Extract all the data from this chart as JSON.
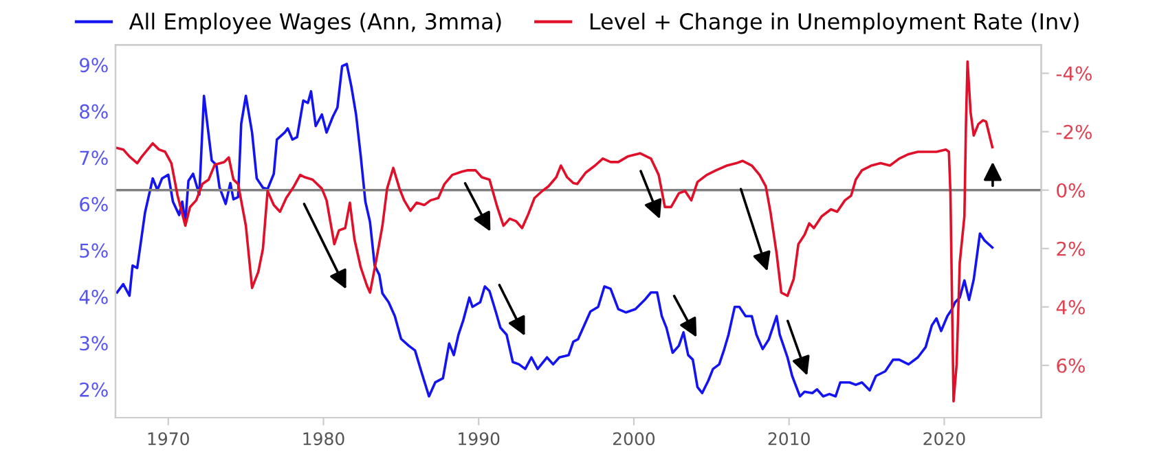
{
  "chart_data": {
    "type": "line",
    "legend": "top",
    "grid": false,
    "xlim": [
      1966.6,
      2026.25
    ],
    "xticks": [
      1970,
      1980,
      1990,
      2000,
      2010,
      2020
    ],
    "ylim": [
      1.39,
      9.43
    ],
    "yticks": [
      {
        "value": 2,
        "label": "2%"
      },
      {
        "value": 3,
        "label": "3%"
      },
      {
        "value": 4,
        "label": "4%"
      },
      {
        "value": 5,
        "label": "5%"
      },
      {
        "value": 6,
        "label": "6%"
      },
      {
        "value": 7,
        "label": "7%"
      },
      {
        "value": 8,
        "label": "8%"
      },
      {
        "value": 9,
        "label": "9%"
      }
    ],
    "y2lim": [
      7.79,
      -4.97
    ],
    "y2ticks": [
      {
        "value": -4,
        "label": "-4%"
      },
      {
        "value": -2,
        "label": "-2%"
      },
      {
        "value": 0,
        "label": "0%"
      },
      {
        "value": 2,
        "label": "2%"
      },
      {
        "value": 4,
        "label": "4%"
      },
      {
        "value": 6,
        "label": "6%"
      }
    ],
    "ref_lines": [
      {
        "axis": "y2",
        "value": 0,
        "color": "#808080"
      }
    ],
    "series": [
      {
        "name": "All Employee Wages (Ann, 3mma)",
        "color": "#1414f0",
        "x": [
          1966.7,
          1967.1,
          1967.5,
          1967.7,
          1968.0,
          1968.5,
          1969.0,
          1969.3,
          1969.6,
          1970.0,
          1970.3,
          1970.7,
          1970.9,
          1971.1,
          1971.3,
          1971.6,
          1972.0,
          1972.3,
          1972.8,
          1973.1,
          1973.3,
          1973.7,
          1974.0,
          1974.2,
          1974.5,
          1974.7,
          1975.0,
          1975.4,
          1975.7,
          1976.1,
          1976.4,
          1976.8,
          1977.0,
          1977.5,
          1977.7,
          1978.0,
          1978.3,
          1978.7,
          1979.0,
          1979.2,
          1979.5,
          1979.9,
          1980.2,
          1980.6,
          1980.9,
          1981.2,
          1981.5,
          1981.8,
          1982.1,
          1982.4,
          1982.7,
          1983.0,
          1983.3,
          1983.6,
          1983.8,
          1984.2,
          1984.6,
          1985.0,
          1985.5,
          1985.9,
          1986.3,
          1986.8,
          1987.2,
          1987.7,
          1988.1,
          1988.4,
          1988.7,
          1989.0,
          1989.4,
          1989.6,
          1990.1,
          1990.4,
          1990.7,
          1991.1,
          1991.4,
          1991.8,
          1992.2,
          1992.6,
          1993.0,
          1993.4,
          1993.8,
          1994.4,
          1994.8,
          1995.2,
          1995.8,
          1996.1,
          1996.4,
          1996.8,
          1997.2,
          1997.7,
          1998.1,
          1998.5,
          1999.0,
          1999.5,
          2000.1,
          2000.7,
          2001.1,
          2001.5,
          2001.8,
          2002.1,
          2002.5,
          2002.9,
          2003.2,
          2003.5,
          2003.8,
          2004.1,
          2004.4,
          2004.8,
          2005.1,
          2005.5,
          2005.8,
          2006.1,
          2006.5,
          2006.8,
          2007.2,
          2007.6,
          2007.9,
          2008.3,
          2008.7,
          2009.0,
          2009.2,
          2009.4,
          2009.9,
          2010.2,
          2010.7,
          2011.0,
          2011.5,
          2011.8,
          2012.2,
          2012.6,
          2013.0,
          2013.3,
          2013.9,
          2014.3,
          2014.7,
          2015.2,
          2015.6,
          2016.2,
          2016.7,
          2017.1,
          2017.7,
          2018.3,
          2018.8,
          2019.2,
          2019.5,
          2019.8,
          2020.2,
          2020.5,
          2020.7,
          2021.0,
          2021.3,
          2021.6,
          2021.9,
          2022.3,
          2022.6,
          2023.1
        ],
        "values": [
          4.09,
          4.27,
          4.02,
          4.67,
          4.62,
          5.81,
          6.55,
          6.3,
          6.55,
          6.63,
          6.05,
          5.76,
          6.05,
          5.61,
          6.5,
          6.65,
          6.2,
          8.33,
          6.94,
          6.84,
          6.36,
          6.0,
          6.45,
          6.1,
          6.15,
          7.73,
          8.33,
          7.54,
          6.55,
          6.35,
          6.32,
          6.65,
          7.39,
          7.54,
          7.63,
          7.39,
          7.44,
          8.23,
          8.18,
          8.43,
          7.68,
          7.93,
          7.54,
          7.88,
          8.08,
          8.97,
          9.02,
          8.53,
          7.93,
          7.04,
          6.05,
          5.61,
          4.67,
          4.47,
          4.07,
          3.88,
          3.58,
          3.09,
          2.94,
          2.84,
          2.39,
          1.85,
          2.15,
          2.24,
          2.99,
          2.74,
          3.18,
          3.48,
          3.98,
          3.78,
          3.88,
          4.22,
          4.12,
          3.68,
          3.33,
          3.18,
          2.59,
          2.54,
          2.44,
          2.69,
          2.44,
          2.69,
          2.54,
          2.69,
          2.74,
          3.03,
          3.08,
          3.38,
          3.68,
          3.78,
          4.22,
          4.17,
          3.73,
          3.66,
          3.73,
          3.93,
          4.09,
          4.09,
          3.58,
          3.33,
          2.79,
          2.94,
          3.23,
          2.74,
          2.64,
          2.05,
          1.92,
          2.19,
          2.44,
          2.54,
          2.84,
          3.18,
          3.78,
          3.78,
          3.58,
          3.58,
          3.18,
          2.87,
          3.08,
          3.38,
          3.58,
          3.18,
          2.69,
          2.29,
          1.85,
          1.95,
          1.92,
          2.0,
          1.85,
          1.9,
          1.85,
          2.15,
          2.15,
          2.1,
          2.15,
          1.98,
          2.29,
          2.39,
          2.64,
          2.64,
          2.54,
          2.69,
          2.91,
          3.38,
          3.53,
          3.26,
          3.58,
          3.73,
          3.88,
          3.98,
          4.35,
          3.93,
          4.37,
          5.36,
          5.21,
          5.06
        ]
      },
      {
        "name": "Level + Change in Unemployment Rate (Inv)",
        "color": "#e0102a",
        "axis": "y2",
        "x": [
          1966.7,
          1967.1,
          1967.5,
          1968.0,
          1968.3,
          1969.0,
          1969.4,
          1969.8,
          1970.2,
          1970.6,
          1971.1,
          1971.4,
          1971.8,
          1972.2,
          1972.6,
          1973.0,
          1973.6,
          1973.9,
          1974.2,
          1974.5,
          1975.0,
          1975.4,
          1975.8,
          1976.1,
          1976.4,
          1976.8,
          1977.2,
          1977.6,
          1978.1,
          1978.5,
          1978.8,
          1979.3,
          1979.9,
          1980.2,
          1980.7,
          1981.0,
          1981.4,
          1981.7,
          1982.0,
          1982.4,
          1982.8,
          1983.0,
          1983.4,
          1983.8,
          1984.1,
          1984.5,
          1984.9,
          1985.2,
          1985.6,
          1986.0,
          1986.5,
          1986.9,
          1987.4,
          1987.8,
          1988.3,
          1988.9,
          1989.3,
          1989.8,
          1990.2,
          1990.7,
          1991.2,
          1991.6,
          1992.0,
          1992.4,
          1992.8,
          1993.2,
          1993.6,
          1994.1,
          1994.5,
          1995.0,
          1995.3,
          1995.7,
          1996.1,
          1996.35,
          1996.9,
          1997.5,
          1998.0,
          1998.5,
          1999.0,
          1999.6,
          2000.4,
          2001.1,
          2001.6,
          2002.0,
          2002.4,
          2002.9,
          2003.3,
          2003.7,
          2004.1,
          2004.7,
          2005.3,
          2006.0,
          2006.6,
          2007.0,
          2007.6,
          2008.1,
          2008.5,
          2008.8,
          2009.2,
          2009.5,
          2009.9,
          2010.3,
          2010.6,
          2011.0,
          2011.3,
          2011.6,
          2012.1,
          2012.7,
          2013.1,
          2013.6,
          2014.0,
          2014.3,
          2014.7,
          2015.3,
          2015.9,
          2016.5,
          2017.1,
          2017.7,
          2018.3,
          2018.9,
          2019.5,
          2020.1,
          2020.3,
          2020.4,
          2020.6,
          2020.8,
          2021.0,
          2021.3,
          2021.4,
          2021.5,
          2021.7,
          2021.9,
          2022.2,
          2022.5,
          2022.7,
          2023.1
        ],
        "values": [
          -1.44,
          -1.39,
          -1.15,
          -0.92,
          -1.15,
          -1.6,
          -1.39,
          -1.31,
          -0.92,
          0.19,
          1.22,
          0.58,
          0.35,
          -0.21,
          -0.36,
          -0.87,
          -0.96,
          -1.12,
          -0.36,
          -0.21,
          1.22,
          3.35,
          2.8,
          2.01,
          0.03,
          0.51,
          0.74,
          0.27,
          -0.13,
          -0.52,
          -0.44,
          -0.36,
          -0.05,
          0.35,
          1.85,
          1.38,
          1.3,
          0.43,
          1.69,
          2.64,
          3.27,
          3.51,
          2.4,
          1.22,
          -0.05,
          -0.76,
          -0.05,
          0.35,
          0.71,
          0.43,
          0.51,
          0.35,
          0.27,
          -0.21,
          -0.52,
          -0.63,
          -0.68,
          -0.68,
          -0.44,
          -0.36,
          0.58,
          1.22,
          0.98,
          1.06,
          1.3,
          0.82,
          0.27,
          0.03,
          -0.13,
          -0.44,
          -0.84,
          -0.44,
          -0.24,
          -0.21,
          -0.6,
          -0.84,
          -1.08,
          -0.96,
          -0.96,
          -1.15,
          -1.26,
          -1.08,
          -0.52,
          0.58,
          0.58,
          0.11,
          0.03,
          0.35,
          -0.28,
          -0.52,
          -0.68,
          -0.84,
          -0.92,
          -1.0,
          -0.84,
          -0.52,
          -0.13,
          0.74,
          2.17,
          3.51,
          3.62,
          3.04,
          1.85,
          1.53,
          1.14,
          1.3,
          0.9,
          0.66,
          0.74,
          0.35,
          0.19,
          -0.36,
          -0.68,
          -0.84,
          -0.92,
          -0.84,
          -1.08,
          -1.23,
          -1.31,
          -1.31,
          -1.31,
          -1.39,
          -1.31,
          0.11,
          7.23,
          5.96,
          2.48,
          0.9,
          -2.26,
          -4.4,
          -2.66,
          -1.87,
          -2.26,
          -2.39,
          -2.34,
          -1.47
        ]
      }
    ]
  }
}
